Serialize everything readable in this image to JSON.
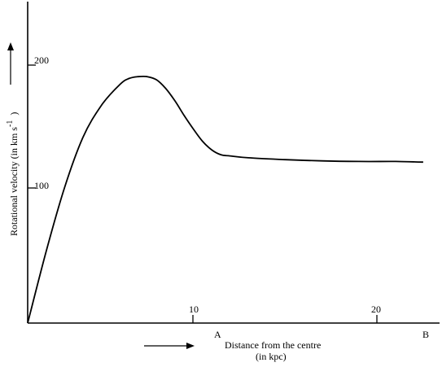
{
  "chart_data": {
    "type": "line",
    "xlabel_line1": "Distance from the centre",
    "xlabel_line2": "(in kpc)",
    "ylabel": "Rotational velocity (in km s",
    "ylabel_sup": "-1",
    "ylabel_close": ")",
    "x_ticks": [
      "10",
      "20"
    ],
    "y_ticks": [
      "100",
      "200"
    ],
    "point_labels": [
      "A",
      "B"
    ],
    "xlim": [
      0,
      22
    ],
    "ylim": [
      0,
      250
    ],
    "series": [
      {
        "x": [
          0,
          1,
          2,
          3,
          4,
          5,
          5.5,
          6,
          6.5,
          7,
          7.5,
          8,
          8.5,
          9,
          9.5,
          10,
          10.5,
          11,
          12,
          14,
          16,
          18,
          20,
          21.5
        ],
        "values": [
          0,
          58,
          110,
          151,
          177,
          194,
          199,
          200.5,
          200.5,
          198,
          191,
          181,
          169,
          158,
          148,
          141,
          137,
          136,
          134.5,
          133,
          132,
          131.5,
          131.5,
          131
        ]
      }
    ]
  }
}
